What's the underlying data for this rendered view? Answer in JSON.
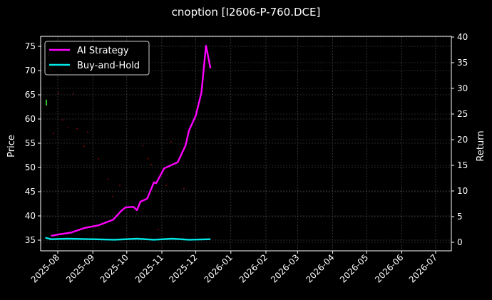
{
  "chart_data": {
    "type": "line",
    "title": "cnoption [I2606-P-760.DCE]",
    "xlabel": "",
    "ylabel": "Price",
    "ylabel_right": "Return",
    "ylim": [
      32.8,
      76.5
    ],
    "ylim_right": [
      -1.7,
      40
    ],
    "yticks": [
      35,
      40,
      45,
      50,
      55,
      60,
      65,
      70,
      75
    ],
    "yticks_right": [
      0,
      5,
      10,
      15,
      20,
      25,
      30,
      35,
      40
    ],
    "xticks": [
      "2025-08",
      "2025-09",
      "2025-10",
      "2025-11",
      "2025-12",
      "2026-01",
      "2026-02",
      "2026-03",
      "2026-04",
      "2026-05",
      "2026-06",
      "2026-07"
    ],
    "grid": true,
    "legend_position": "upper left",
    "legend": [
      "AI Strategy",
      "Buy-and-Hold"
    ],
    "series": [
      {
        "name": "AI Strategy",
        "axis": "right",
        "color": "#ff00ff",
        "x": [
          "2025-07-26",
          "2025-08-01",
          "2025-08-13",
          "2025-08-25",
          "2025-09-06",
          "2025-09-19",
          "2025-09-26",
          "2025-09-30",
          "2025-10-07",
          "2025-10-10",
          "2025-10-13",
          "2025-10-19",
          "2025-10-25",
          "2025-10-27",
          "2025-11-03",
          "2025-11-15",
          "2025-11-22",
          "2025-11-25",
          "2025-12-01",
          "2025-12-06",
          "2025-12-10",
          "2025-12-14"
        ],
        "values": [
          1.25,
          1.5,
          1.9,
          2.8,
          3.3,
          4.4,
          6.1,
          6.8,
          6.9,
          6.25,
          7.9,
          8.5,
          11.7,
          11.5,
          14.4,
          15.6,
          18.9,
          21.8,
          24.7,
          29.2,
          38.3,
          33.9
        ]
      },
      {
        "name": "Buy-and-Hold",
        "axis": "right",
        "color": "#00e5e5",
        "x": [
          "2025-07-21",
          "2025-07-26",
          "2025-08-10",
          "2025-09-01",
          "2025-09-20",
          "2025-10-10",
          "2025-10-25",
          "2025-11-10",
          "2025-11-25",
          "2025-12-14"
        ],
        "values": [
          0.9,
          0.6,
          0.7,
          0.6,
          0.5,
          0.7,
          0.5,
          0.7,
          0.5,
          0.6
        ]
      }
    ],
    "annotations": [
      {
        "type": "green-bar",
        "x": "2025-07-26",
        "y_price": [
          62.8,
          64.0
        ],
        "color": "#2ec02e"
      },
      {
        "type": "red-dots",
        "note": "faint red markers scattered across price axis 37-66"
      }
    ]
  }
}
